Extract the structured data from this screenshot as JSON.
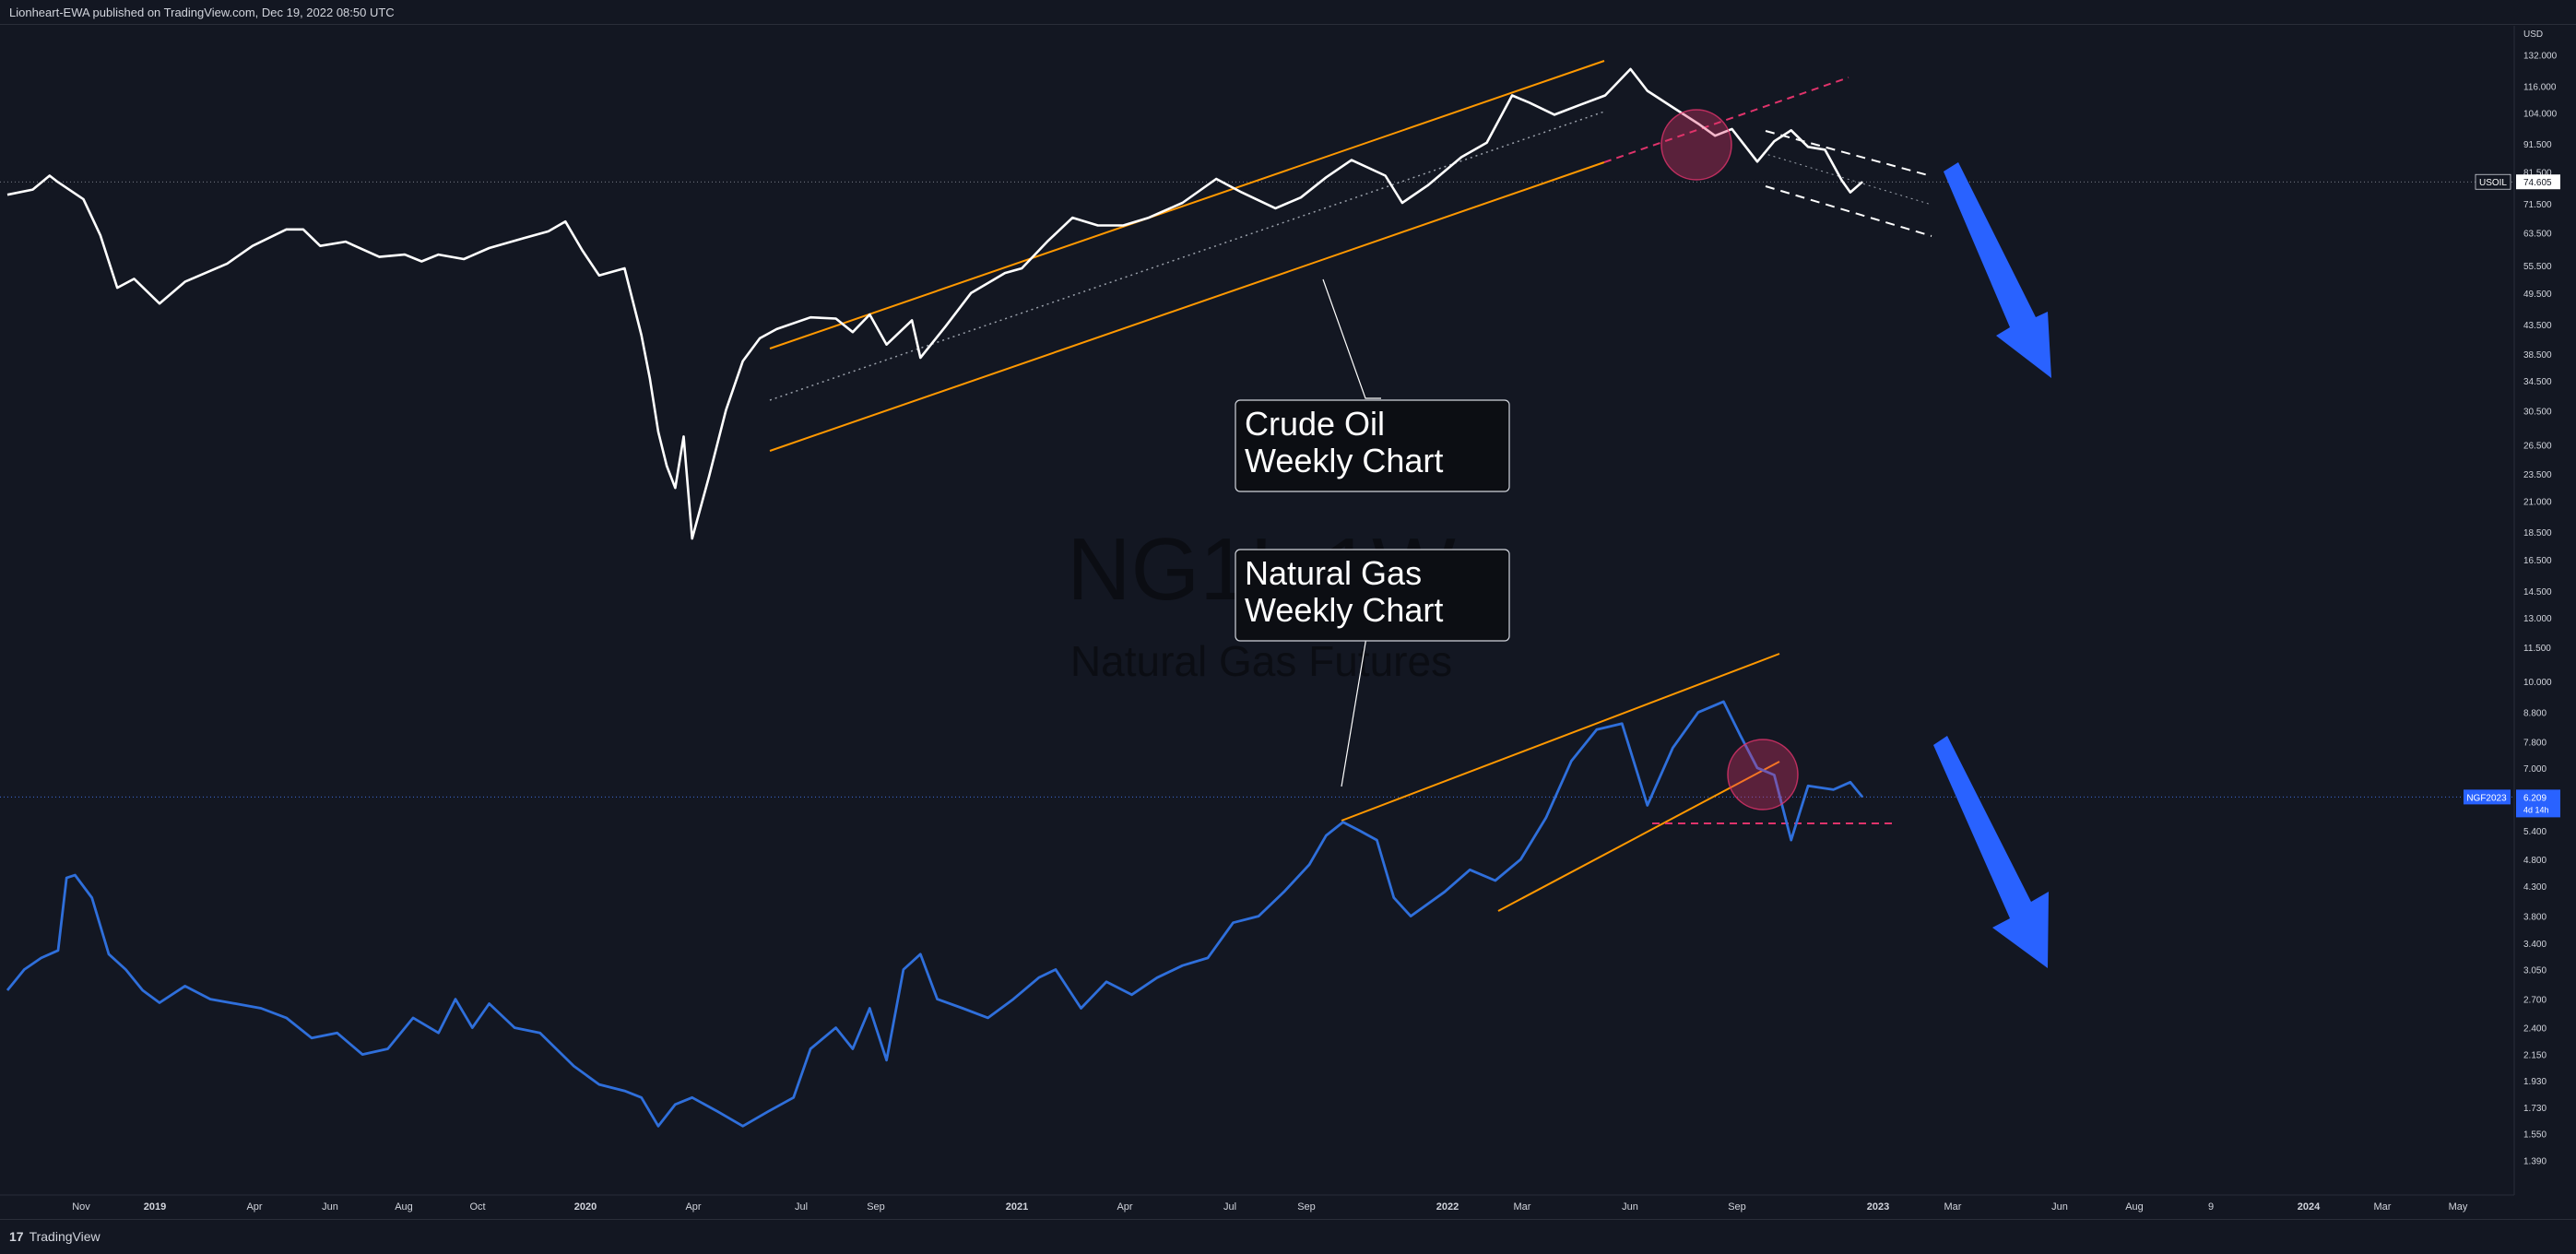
{
  "header": {
    "published": "Lionheart-EWA published on TradingView.com, Dec 19, 2022 08:50 UTC"
  },
  "footer": {
    "brand": "TradingView",
    "brand_icon": "tradingview-logo-icon"
  },
  "colors": {
    "background": "#131722",
    "crude": "#ffffff",
    "gas": "#2f6fdb",
    "channel": "#ff9800",
    "pink": "#e0336b",
    "arrow": "#2962ff"
  },
  "watermark": {
    "symbol": "NG1!, 1W",
    "name": "Natural Gas Futures"
  },
  "annotations": {
    "crude_label": [
      "Crude Oil",
      "Weekly Chart"
    ],
    "gas_label": [
      "Natural Gas",
      "Weekly Chart"
    ]
  },
  "chart_data": [
    {
      "type": "line",
      "series": [
        {
          "name": "USOIL",
          "color": "#ffffff"
        }
      ],
      "x_ticks": [
        "Nov",
        "2019",
        "Apr",
        "Jun",
        "Aug",
        "Oct",
        "2020",
        "Apr",
        "Jul",
        "Sep",
        "2021",
        "Apr",
        "Jul",
        "Sep",
        "2022",
        "Mar",
        "Jun",
        "Sep",
        "2023",
        "Mar",
        "Jun",
        "Aug",
        "9",
        "2024",
        "Mar",
        "May"
      ],
      "x": [
        "2018-10-05",
        "2018-10-26",
        "2018-11-09",
        "2018-11-16",
        "2018-12-07",
        "2018-12-21",
        "2019-01-04",
        "2019-01-18",
        "2019-02-08",
        "2019-03-01",
        "2019-04-05",
        "2019-04-26",
        "2019-05-24",
        "2019-06-07",
        "2019-06-21",
        "2019-07-12",
        "2019-08-09",
        "2019-08-30",
        "2019-09-13",
        "2019-09-27",
        "2019-10-18",
        "2019-11-08",
        "2019-12-06",
        "2019-12-27",
        "2020-01-10",
        "2020-01-24",
        "2020-02-07",
        "2020-02-28",
        "2020-03-13",
        "2020-03-20",
        "2020-03-27",
        "2020-04-03",
        "2020-04-10",
        "2020-04-17",
        "2020-04-24",
        "2020-05-08",
        "2020-05-22",
        "2020-06-05",
        "2020-06-19",
        "2020-07-03",
        "2020-07-31",
        "2020-08-21",
        "2020-09-04",
        "2020-09-18",
        "2020-10-02",
        "2020-10-23",
        "2020-10-30",
        "2020-11-20",
        "2020-12-11",
        "2021-01-08",
        "2021-01-22",
        "2021-02-12",
        "2021-03-05",
        "2021-03-26",
        "2021-04-16",
        "2021-05-07",
        "2021-06-04",
        "2021-07-02",
        "2021-07-23",
        "2021-08-20",
        "2021-09-10",
        "2021-10-01",
        "2021-10-22",
        "2021-11-19",
        "2021-12-03",
        "2021-12-24",
        "2022-01-21",
        "2022-02-11",
        "2022-03-04",
        "2022-03-18",
        "2022-04-08",
        "2022-04-29",
        "2022-05-20",
        "2022-06-10",
        "2022-06-24",
        "2022-07-15",
        "2022-08-05",
        "2022-08-19",
        "2022-09-02",
        "2022-09-23",
        "2022-10-07",
        "2022-10-21",
        "2022-11-04",
        "2022-11-18",
        "2022-12-02",
        "2022-12-09",
        "2022-12-19"
      ],
      "values": [
        70.8,
        72.3,
        76.5,
        74.5,
        69.5,
        60.0,
        48.5,
        50.3,
        45.5,
        49.7,
        53.5,
        57.5,
        61.5,
        61.5,
        57.5,
        58.5,
        55.0,
        55.5,
        54.0,
        55.5,
        54.5,
        57.0,
        59.3,
        61.0,
        63.5,
        56.5,
        51.0,
        52.5,
        40.0,
        33.5,
        27.0,
        23.5,
        21.5,
        26.5,
        17.5,
        22.5,
        29.5,
        36.0,
        39.5,
        41.0,
        43.0,
        42.8,
        40.5,
        43.5,
        38.5,
        42.5,
        36.5,
        41.5,
        47.5,
        51.5,
        52.5,
        58.5,
        64.5,
        62.5,
        62.5,
        64.5,
        68.5,
        75.5,
        71.5,
        67.0,
        70.0,
        76.0,
        81.5,
        76.5,
        68.5,
        73.5,
        82.5,
        87.5,
        106.0,
        103.0,
        98.0,
        102.0,
        106.0,
        118.0,
        108.0,
        101.0,
        94.5,
        90.0,
        92.5,
        81.0,
        88.0,
        92.0,
        86.0,
        85.0,
        75.0,
        71.5,
        74.6
      ],
      "last_value": "74.605",
      "price_axis": [
        "USD",
        "132.000",
        "116.000",
        "104.000",
        "91.500",
        "81.500",
        "71.500",
        "63.500",
        "55.500",
        "49.500",
        "43.500",
        "38.500",
        "34.500",
        "30.500",
        "26.500",
        "23.500",
        "21.000",
        "18.500",
        "16.500",
        "14.500",
        "13.000",
        "11.500",
        "10.000",
        "8.800",
        "7.800",
        "7.000",
        "6.200",
        "5.400",
        "4.800",
        "4.300",
        "3.800",
        "3.400",
        "3.050",
        "2.700",
        "2.400",
        "2.150",
        "1.930",
        "1.730",
        "1.550",
        "1.390"
      ]
    },
    {
      "type": "line",
      "series": [
        {
          "name": "NGF2023",
          "color": "#2f6fdb"
        }
      ],
      "x": [
        "2018-10-05",
        "2018-10-19",
        "2018-11-02",
        "2018-11-16",
        "2018-11-23",
        "2018-11-30",
        "2018-12-14",
        "2018-12-28",
        "2019-01-11",
        "2019-01-25",
        "2019-02-08",
        "2019-03-01",
        "2019-03-22",
        "2019-04-12",
        "2019-05-03",
        "2019-05-24",
        "2019-06-14",
        "2019-07-05",
        "2019-07-26",
        "2019-08-16",
        "2019-09-06",
        "2019-09-27",
        "2019-10-11",
        "2019-10-25",
        "2019-11-08",
        "2019-11-29",
        "2019-12-20",
        "2020-01-17",
        "2020-02-07",
        "2020-02-28",
        "2020-03-13",
        "2020-03-27",
        "2020-04-10",
        "2020-04-24",
        "2020-05-15",
        "2020-06-05",
        "2020-06-26",
        "2020-07-17",
        "2020-07-31",
        "2020-08-21",
        "2020-09-04",
        "2020-09-18",
        "2020-10-02",
        "2020-10-16",
        "2020-10-30",
        "2020-11-13",
        "2020-12-04",
        "2020-12-25",
        "2021-01-15",
        "2021-02-05",
        "2021-02-19",
        "2021-03-12",
        "2021-04-02",
        "2021-04-23",
        "2021-05-14",
        "2021-06-04",
        "2021-06-25",
        "2021-07-16",
        "2021-08-06",
        "2021-08-27",
        "2021-09-17",
        "2021-10-01",
        "2021-10-15",
        "2021-10-29",
        "2021-11-12",
        "2021-11-26",
        "2021-12-10",
        "2022-01-07",
        "2022-01-28",
        "2022-02-18",
        "2022-03-11",
        "2022-04-01",
        "2022-04-22",
        "2022-05-13",
        "2022-06-03",
        "2022-06-24",
        "2022-07-15",
        "2022-08-05",
        "2022-08-26",
        "2022-09-09",
        "2022-09-23",
        "2022-10-07",
        "2022-10-21",
        "2022-11-04",
        "2022-11-25",
        "2022-12-09",
        "2022-12-19"
      ],
      "values": [
        2.8,
        3.05,
        3.2,
        3.3,
        4.45,
        4.5,
        4.1,
        3.25,
        3.05,
        2.8,
        2.66,
        2.85,
        2.7,
        2.65,
        2.6,
        2.5,
        2.3,
        2.35,
        2.15,
        2.2,
        2.5,
        2.35,
        2.7,
        2.4,
        2.65,
        2.4,
        2.35,
        2.05,
        1.9,
        1.85,
        1.8,
        1.6,
        1.75,
        1.8,
        1.7,
        1.6,
        1.7,
        1.8,
        2.2,
        2.4,
        2.2,
        2.6,
        2.1,
        3.05,
        3.25,
        2.7,
        2.6,
        2.5,
        2.7,
        2.95,
        3.05,
        2.6,
        2.9,
        2.75,
        2.95,
        3.1,
        3.2,
        3.7,
        3.8,
        4.2,
        4.7,
        5.3,
        5.6,
        5.4,
        5.2,
        4.1,
        3.8,
        4.2,
        4.6,
        4.4,
        4.8,
        5.7,
        7.2,
        8.2,
        8.4,
        6.0,
        7.6,
        8.8,
        9.2,
        8.0,
        7.0,
        6.8,
        5.2,
        6.5,
        6.4,
        6.6,
        6.209
      ],
      "last_value": "6.209",
      "countdown": "4d 14h"
    }
  ]
}
